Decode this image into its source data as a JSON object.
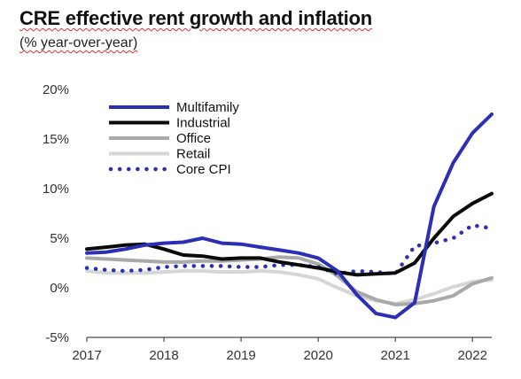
{
  "title": "CRE effective rent growth and inflation",
  "subtitle": "(% year-over-year)",
  "chart_data": {
    "type": "line",
    "title": "CRE effective rent growth and inflation",
    "subtitle": "(% year-over-year)",
    "xlabel": "",
    "ylabel": "",
    "x": [
      2017.0,
      2017.25,
      2017.5,
      2017.75,
      2018.0,
      2018.25,
      2018.5,
      2018.75,
      2019.0,
      2019.25,
      2019.5,
      2019.75,
      2020.0,
      2020.25,
      2020.5,
      2020.75,
      2021.0,
      2021.25,
      2021.5,
      2021.75,
      2022.0,
      2022.25
    ],
    "x_ticks": [
      2017,
      2018,
      2019,
      2020,
      2021,
      2022
    ],
    "x_tick_labels": [
      "2017",
      "2018",
      "2019",
      "2020",
      "2021",
      "2022"
    ],
    "xlim": [
      2017.0,
      2022.25
    ],
    "ylim": [
      -5,
      20
    ],
    "y_ticks": [
      -5,
      0,
      5,
      10,
      15,
      20
    ],
    "y_tick_labels": [
      "-5%",
      "0%",
      "5%",
      "10%",
      "15%",
      "20%"
    ],
    "grid": false,
    "legend_position": "top-left",
    "series": [
      {
        "name": "Multifamily",
        "color": "#2b2fb5",
        "style": "solid",
        "width": 4,
        "values": [
          3.5,
          3.6,
          3.9,
          4.3,
          4.5,
          4.6,
          5.0,
          4.5,
          4.4,
          4.1,
          3.8,
          3.5,
          3.0,
          1.7,
          -0.7,
          -2.6,
          -3.0,
          -1.5,
          8.2,
          12.6,
          15.6,
          17.5
        ]
      },
      {
        "name": "Industrial",
        "color": "#0a0a0a",
        "style": "solid",
        "width": 4,
        "values": [
          3.9,
          4.1,
          4.3,
          4.4,
          3.9,
          3.3,
          3.2,
          2.9,
          3.0,
          3.0,
          2.6,
          2.3,
          2.0,
          1.6,
          1.3,
          1.4,
          1.5,
          2.5,
          5.0,
          7.2,
          8.5,
          9.5
        ]
      },
      {
        "name": "Office",
        "color": "#a9a9a9",
        "style": "solid",
        "width": 4,
        "values": [
          3.0,
          2.9,
          2.8,
          2.7,
          2.6,
          2.6,
          2.7,
          2.7,
          2.8,
          2.9,
          3.1,
          3.0,
          2.4,
          1.2,
          -0.4,
          -1.2,
          -1.7,
          -1.6,
          -1.3,
          -0.8,
          0.4,
          1.0
        ]
      },
      {
        "name": "Retail",
        "color": "#d6d6d6",
        "style": "solid",
        "width": 4,
        "values": [
          1.7,
          1.5,
          1.5,
          1.5,
          1.6,
          1.7,
          1.7,
          1.6,
          1.6,
          1.7,
          1.6,
          1.3,
          0.9,
          0.0,
          -0.8,
          -1.3,
          -1.6,
          -1.2,
          -0.6,
          0.1,
          0.6,
          0.8
        ]
      },
      {
        "name": "Core CPI",
        "color": "#2b2fb5",
        "style": "dotted",
        "width": 4,
        "values": [
          2.0,
          1.8,
          1.7,
          1.8,
          2.1,
          2.2,
          2.2,
          2.2,
          2.1,
          2.1,
          2.3,
          2.3,
          2.1,
          1.4,
          1.7,
          1.6,
          1.4,
          4.2,
          4.5,
          5.0,
          6.3,
          6.0
        ]
      }
    ]
  }
}
